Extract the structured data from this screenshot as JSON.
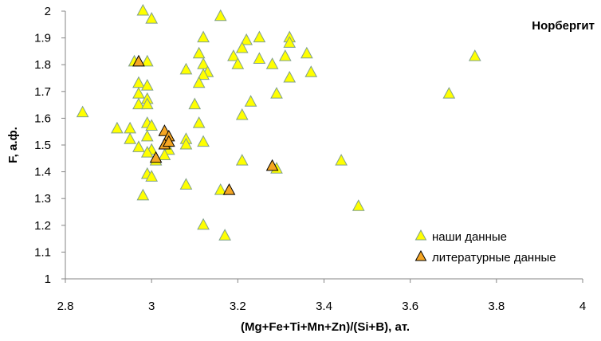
{
  "chart_data": {
    "type": "scatter",
    "title": "Норбергит",
    "xlabel": "(Mg+Fe+Ti+Mn+Zn)/(Si+B), ат.",
    "ylabel": "F, а.ф.",
    "xlim": [
      2.8,
      4.0
    ],
    "ylim": [
      1.0,
      2.0
    ],
    "xticks": [
      "2.8",
      "3",
      "3.2",
      "3.4",
      "3.6",
      "3.8",
      "4"
    ],
    "yticks": [
      "1",
      "1.1",
      "1.2",
      "1.3",
      "1.4",
      "1.5",
      "1.6",
      "1.7",
      "1.8",
      "1.9",
      "2"
    ],
    "grid": false,
    "legend_position": "bottom-right",
    "series": [
      {
        "name": "наши данные",
        "marker": "triangle",
        "color": "#FFFF00",
        "edge_color": "#7FA08A",
        "points": [
          [
            2.98,
            2.0
          ],
          [
            3.0,
            1.97
          ],
          [
            3.16,
            1.98
          ],
          [
            2.96,
            1.81
          ],
          [
            2.99,
            1.81
          ],
          [
            3.12,
            1.9
          ],
          [
            3.22,
            1.89
          ],
          [
            3.25,
            1.9
          ],
          [
            3.32,
            1.9
          ],
          [
            3.21,
            1.86
          ],
          [
            3.32,
            1.88
          ],
          [
            3.11,
            1.84
          ],
          [
            3.19,
            1.83
          ],
          [
            3.25,
            1.82
          ],
          [
            3.31,
            1.83
          ],
          [
            3.36,
            1.84
          ],
          [
            3.75,
            1.83
          ],
          [
            3.12,
            1.8
          ],
          [
            3.2,
            1.8
          ],
          [
            3.28,
            1.8
          ],
          [
            3.08,
            1.78
          ],
          [
            3.13,
            1.77
          ],
          [
            3.12,
            1.76
          ],
          [
            3.37,
            1.77
          ],
          [
            3.32,
            1.75
          ],
          [
            2.97,
            1.73
          ],
          [
            2.99,
            1.72
          ],
          [
            3.11,
            1.73
          ],
          [
            2.97,
            1.69
          ],
          [
            3.29,
            1.69
          ],
          [
            3.69,
            1.69
          ],
          [
            2.99,
            1.67
          ],
          [
            2.97,
            1.65
          ],
          [
            2.99,
            1.65
          ],
          [
            3.1,
            1.65
          ],
          [
            3.23,
            1.66
          ],
          [
            2.84,
            1.62
          ],
          [
            3.21,
            1.61
          ],
          [
            2.99,
            1.58
          ],
          [
            3.11,
            1.58
          ],
          [
            3.0,
            1.57
          ],
          [
            2.92,
            1.56
          ],
          [
            2.95,
            1.56
          ],
          [
            2.99,
            1.53
          ],
          [
            2.95,
            1.52
          ],
          [
            3.08,
            1.52
          ],
          [
            3.12,
            1.51
          ],
          [
            3.08,
            1.5
          ],
          [
            2.97,
            1.49
          ],
          [
            3.0,
            1.48
          ],
          [
            2.99,
            1.47
          ],
          [
            3.04,
            1.48
          ],
          [
            3.03,
            1.46
          ],
          [
            3.01,
            1.44
          ],
          [
            3.21,
            1.44
          ],
          [
            3.44,
            1.44
          ],
          [
            3.29,
            1.41
          ],
          [
            2.99,
            1.39
          ],
          [
            3.0,
            1.38
          ],
          [
            3.08,
            1.35
          ],
          [
            3.16,
            1.33
          ],
          [
            2.98,
            1.31
          ],
          [
            3.48,
            1.27
          ],
          [
            3.12,
            1.2
          ],
          [
            3.17,
            1.16
          ]
        ]
      },
      {
        "name": "литературные данные",
        "marker": "triangle",
        "color": "#F5A623",
        "edge_color": "#000000",
        "points": [
          [
            2.97,
            1.81
          ],
          [
            3.03,
            1.55
          ],
          [
            3.04,
            1.53
          ],
          [
            3.03,
            1.5
          ],
          [
            3.04,
            1.51
          ],
          [
            3.01,
            1.45
          ],
          [
            3.18,
            1.33
          ],
          [
            3.28,
            1.42
          ]
        ]
      }
    ]
  }
}
